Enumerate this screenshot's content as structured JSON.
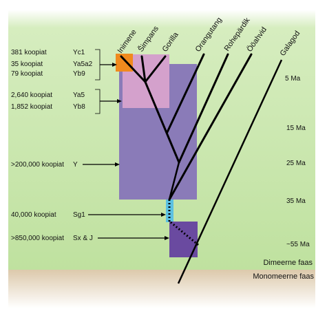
{
  "colors": {
    "green_band": "#c9e7ad",
    "sand_band": "#d9c5a7",
    "y_box": "#8a7bb8",
    "y_subbox": "#d4a1cc",
    "yc1_box": "#f08a1e",
    "sg1_box": "#5cc1e2",
    "sxj_box": "#6a4aa0",
    "lines": "#000000"
  },
  "species": [
    "Inimene",
    "Šimpans",
    "Gorilla",
    "Orangutang",
    "Rohepärdik",
    "Ööahvid",
    "Galagod"
  ],
  "copy_labels": [
    {
      "count": "381 koopiat",
      "family": "Yc1"
    },
    {
      "count": "35 koopiat",
      "family": "Ya5a2"
    },
    {
      "count": "79 koopiat",
      "family": "Yb9"
    },
    {
      "count": "2,640 koopiat",
      "family": "Ya5"
    },
    {
      "count": "1,852 koopiat",
      "family": "Yb8"
    },
    {
      "count": ">200,000 koopiat",
      "family": "Y"
    },
    {
      "count": "40,000 koopiat",
      "family": "Sg1"
    },
    {
      "count": ">850,000 koopiat",
      "family": "Sx & J"
    }
  ],
  "ages": [
    "5 Ma",
    "15 Ma",
    "25 Ma",
    "35 Ma",
    "~55 Ma"
  ],
  "phases": {
    "dimeric": "Dimeerne faas",
    "monomeric": "Monomeerne faas"
  }
}
